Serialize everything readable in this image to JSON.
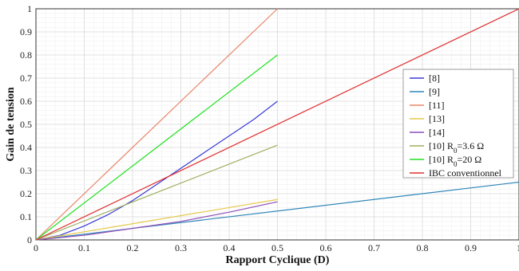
{
  "chart_data": {
    "type": "line",
    "xlabel": "Rapport Cyclique (D)",
    "ylabel": "Gain de tension",
    "xlim": [
      0,
      1
    ],
    "ylim": [
      0,
      1
    ],
    "x_ticks": [
      "0",
      "0.1",
      "0.2",
      "0.3",
      "0.4",
      "0.5",
      "0.6",
      "0.7",
      "0.8",
      "0.9",
      "1"
    ],
    "y_ticks": [
      "0",
      "0.1",
      "0.2",
      "0.3",
      "0.4",
      "0.5",
      "0.6",
      "0.7",
      "0.8",
      "0.9",
      "1"
    ],
    "grid": true,
    "minor_grid": true,
    "legend_position": "right",
    "series": [
      {
        "name": "[8]",
        "color": "#3a3ad8",
        "points": [
          [
            0,
            0
          ],
          [
            0.05,
            0.02
          ],
          [
            0.1,
            0.06
          ],
          [
            0.15,
            0.11
          ],
          [
            0.2,
            0.17
          ],
          [
            0.25,
            0.24
          ],
          [
            0.3,
            0.31
          ],
          [
            0.35,
            0.38
          ],
          [
            0.4,
            0.45
          ],
          [
            0.45,
            0.52
          ],
          [
            0.5,
            0.6
          ]
        ]
      },
      {
        "name": "[9]",
        "color": "#2e86b8",
        "points": [
          [
            0,
            0
          ],
          [
            1,
            0.25
          ]
        ]
      },
      {
        "name": "[11]",
        "color": "#e8876a",
        "points": [
          [
            0,
            0
          ],
          [
            0.5,
            1.0
          ]
        ]
      },
      {
        "name": "[13]",
        "color": "#e6c84a",
        "points": [
          [
            0,
            0
          ],
          [
            0.5,
            0.175
          ]
        ]
      },
      {
        "name": "[14]",
        "color": "#8e4fb8",
        "points": [
          [
            0,
            0
          ],
          [
            0.1,
            0.02
          ],
          [
            0.2,
            0.05
          ],
          [
            0.3,
            0.08
          ],
          [
            0.4,
            0.12
          ],
          [
            0.5,
            0.165
          ]
        ]
      },
      {
        "name": "[10] R",
        "name_sub": "0",
        "name_suffix": "=3.6 Ω",
        "color": "#9fae5e",
        "points": [
          [
            0,
            0
          ],
          [
            0.5,
            0.41
          ]
        ]
      },
      {
        "name": "[10] R",
        "name_sub": "0",
        "name_suffix": "=20 Ω",
        "color": "#22e022",
        "points": [
          [
            0,
            0
          ],
          [
            0.5,
            0.8
          ]
        ]
      },
      {
        "name": "IBC conventionnel",
        "color": "#e03030",
        "points": [
          [
            0,
            0
          ],
          [
            1,
            1
          ]
        ]
      }
    ]
  }
}
